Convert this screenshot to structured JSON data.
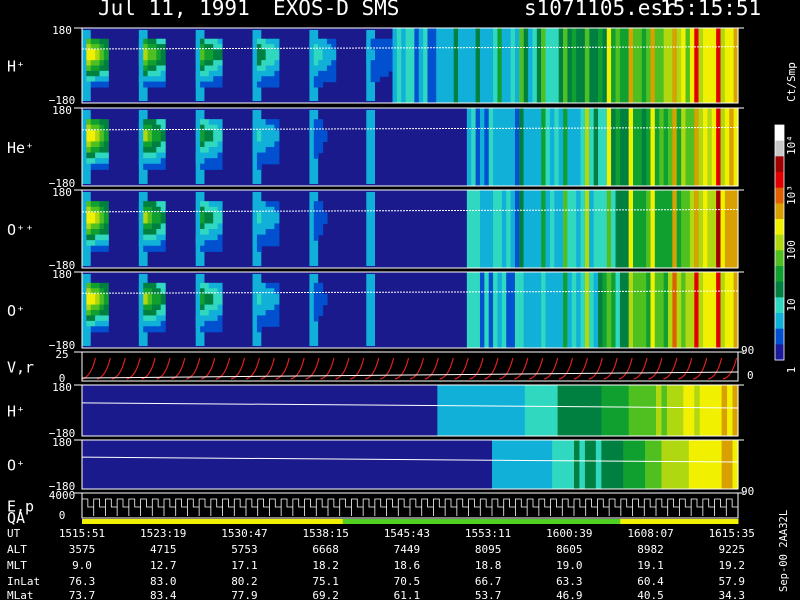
{
  "header": {
    "date": "Jul 11, 1991",
    "instrument": "EXOS-D SMS",
    "file": "s1071105.esr",
    "time": "15:15:51"
  },
  "colorbar": {
    "title": "Ct/Smp",
    "ticks": [
      "1",
      "10",
      "100",
      "10³",
      "10⁴"
    ],
    "colors": [
      "#1a1a9a",
      "#0050d0",
      "#10b0d8",
      "#30d8c0",
      "#008040",
      "#10a030",
      "#50c020",
      "#b0d810",
      "#f0f000",
      "#d8a000",
      "#e06000",
      "#e00000",
      "#a00000",
      "#c8c8c8",
      "#ffffff"
    ]
  },
  "chart_data": {
    "type": "heatmap",
    "title": "Jul 11, 1991   EXOS-D SMS   s1071105.esr  15:15:51",
    "x_axis": {
      "label": "UT",
      "ticks": [
        "1515:51",
        "1523:19",
        "1530:47",
        "1538:15",
        "1545:43",
        "1553:11",
        "1600:39",
        "1608:07",
        "1615:35"
      ]
    },
    "panels": [
      {
        "name": "H⁺",
        "ymax": "180",
        "ymin": "−180",
        "kind": "pitch"
      },
      {
        "name": "He⁺",
        "ymax": "180",
        "ymin": "−180",
        "kind": "pitch"
      },
      {
        "name": "O⁺⁺",
        "ymax": "180",
        "ymin": "−180",
        "kind": "pitch"
      },
      {
        "name": "O⁺",
        "ymax": "180",
        "ymin": "−180",
        "kind": "pitch"
      },
      {
        "name": "V,r",
        "ymax": "25",
        "ymin": "0",
        "right": "90",
        "right_bottom": "0",
        "kind": "line"
      },
      {
        "name": "H⁺",
        "ymax": "180",
        "ymin": "−180",
        "kind": "phase"
      },
      {
        "name": "O⁺",
        "ymax": "180",
        "ymin": "−180",
        "kind": "phase"
      },
      {
        "name": "E,p",
        "ymax": "4000",
        "ymin": "0",
        "right": "90",
        "kind": "steps",
        "label2": "QA"
      }
    ],
    "ephemeris": [
      {
        "label": "UT",
        "values": [
          "1515:51",
          "1523:19",
          "1530:47",
          "1538:15",
          "1545:43",
          "1553:11",
          "1600:39",
          "1608:07",
          "1615:35"
        ]
      },
      {
        "label": "ALT",
        "values": [
          "3575",
          "4715",
          "5753",
          "6668",
          "7449",
          "8095",
          "8605",
          "8982",
          "9225"
        ]
      },
      {
        "label": "MLT",
        "values": [
          "9.0",
          "12.7",
          "17.1",
          "18.2",
          "18.6",
          "18.8",
          "19.0",
          "19.1",
          "19.2"
        ]
      },
      {
        "label": "InLat",
        "values": [
          "76.3",
          "83.0",
          "80.2",
          "75.1",
          "70.5",
          "66.7",
          "63.3",
          "60.4",
          "57.9"
        ]
      },
      {
        "label": "MLat",
        "values": [
          "73.7",
          "83.4",
          "77.9",
          "69.2",
          "61.1",
          "53.7",
          "46.9",
          "40.5",
          "34.3"
        ]
      }
    ],
    "sidenote": "Sep-00  2AA32L",
    "qa_bar": [
      "#f0f000",
      "#f0f000",
      "#f0f000",
      "#f0f000",
      "#f0f000",
      "#f0f000",
      "#f0f000",
      "#f0f000",
      "#f0f000",
      "#f0f000",
      "#f0f000",
      "#f0f000",
      "#f0f000",
      "#f0f000",
      "#f0f000",
      "#f0f000",
      "#f0f000",
      "#f0f000",
      "#f0f000",
      "#f0f000",
      "#f0f000",
      "#f0f000",
      "#f0f000",
      "#f0f000",
      "#f0f000",
      "#f0f000",
      "#f0f000",
      "#f0f000",
      "#f0f000",
      "#f0f000",
      "#f0f000",
      "#50d020",
      "#50d020",
      "#50d020",
      "#50d020",
      "#50d020",
      "#50d020",
      "#50d020",
      "#50d020",
      "#50d020",
      "#50d020",
      "#50d020",
      "#50d020",
      "#50d020",
      "#50d020",
      "#50d020",
      "#50d020",
      "#50d020",
      "#50d020",
      "#50d020",
      "#50d020",
      "#50d020",
      "#50d020",
      "#50d020",
      "#50d020",
      "#50d020",
      "#50d020",
      "#50d020",
      "#50d020",
      "#50d020",
      "#50d020",
      "#50d020",
      "#50d020",
      "#50d020",
      "#f0f000",
      "#f0f000",
      "#f0f000",
      "#f0f000",
      "#f0f000",
      "#f0f000",
      "#f0f000",
      "#f0f000",
      "#f0f000",
      "#f0f000",
      "#f0f000",
      "#f0f000",
      "#f0f000",
      "#f0f000"
    ]
  }
}
